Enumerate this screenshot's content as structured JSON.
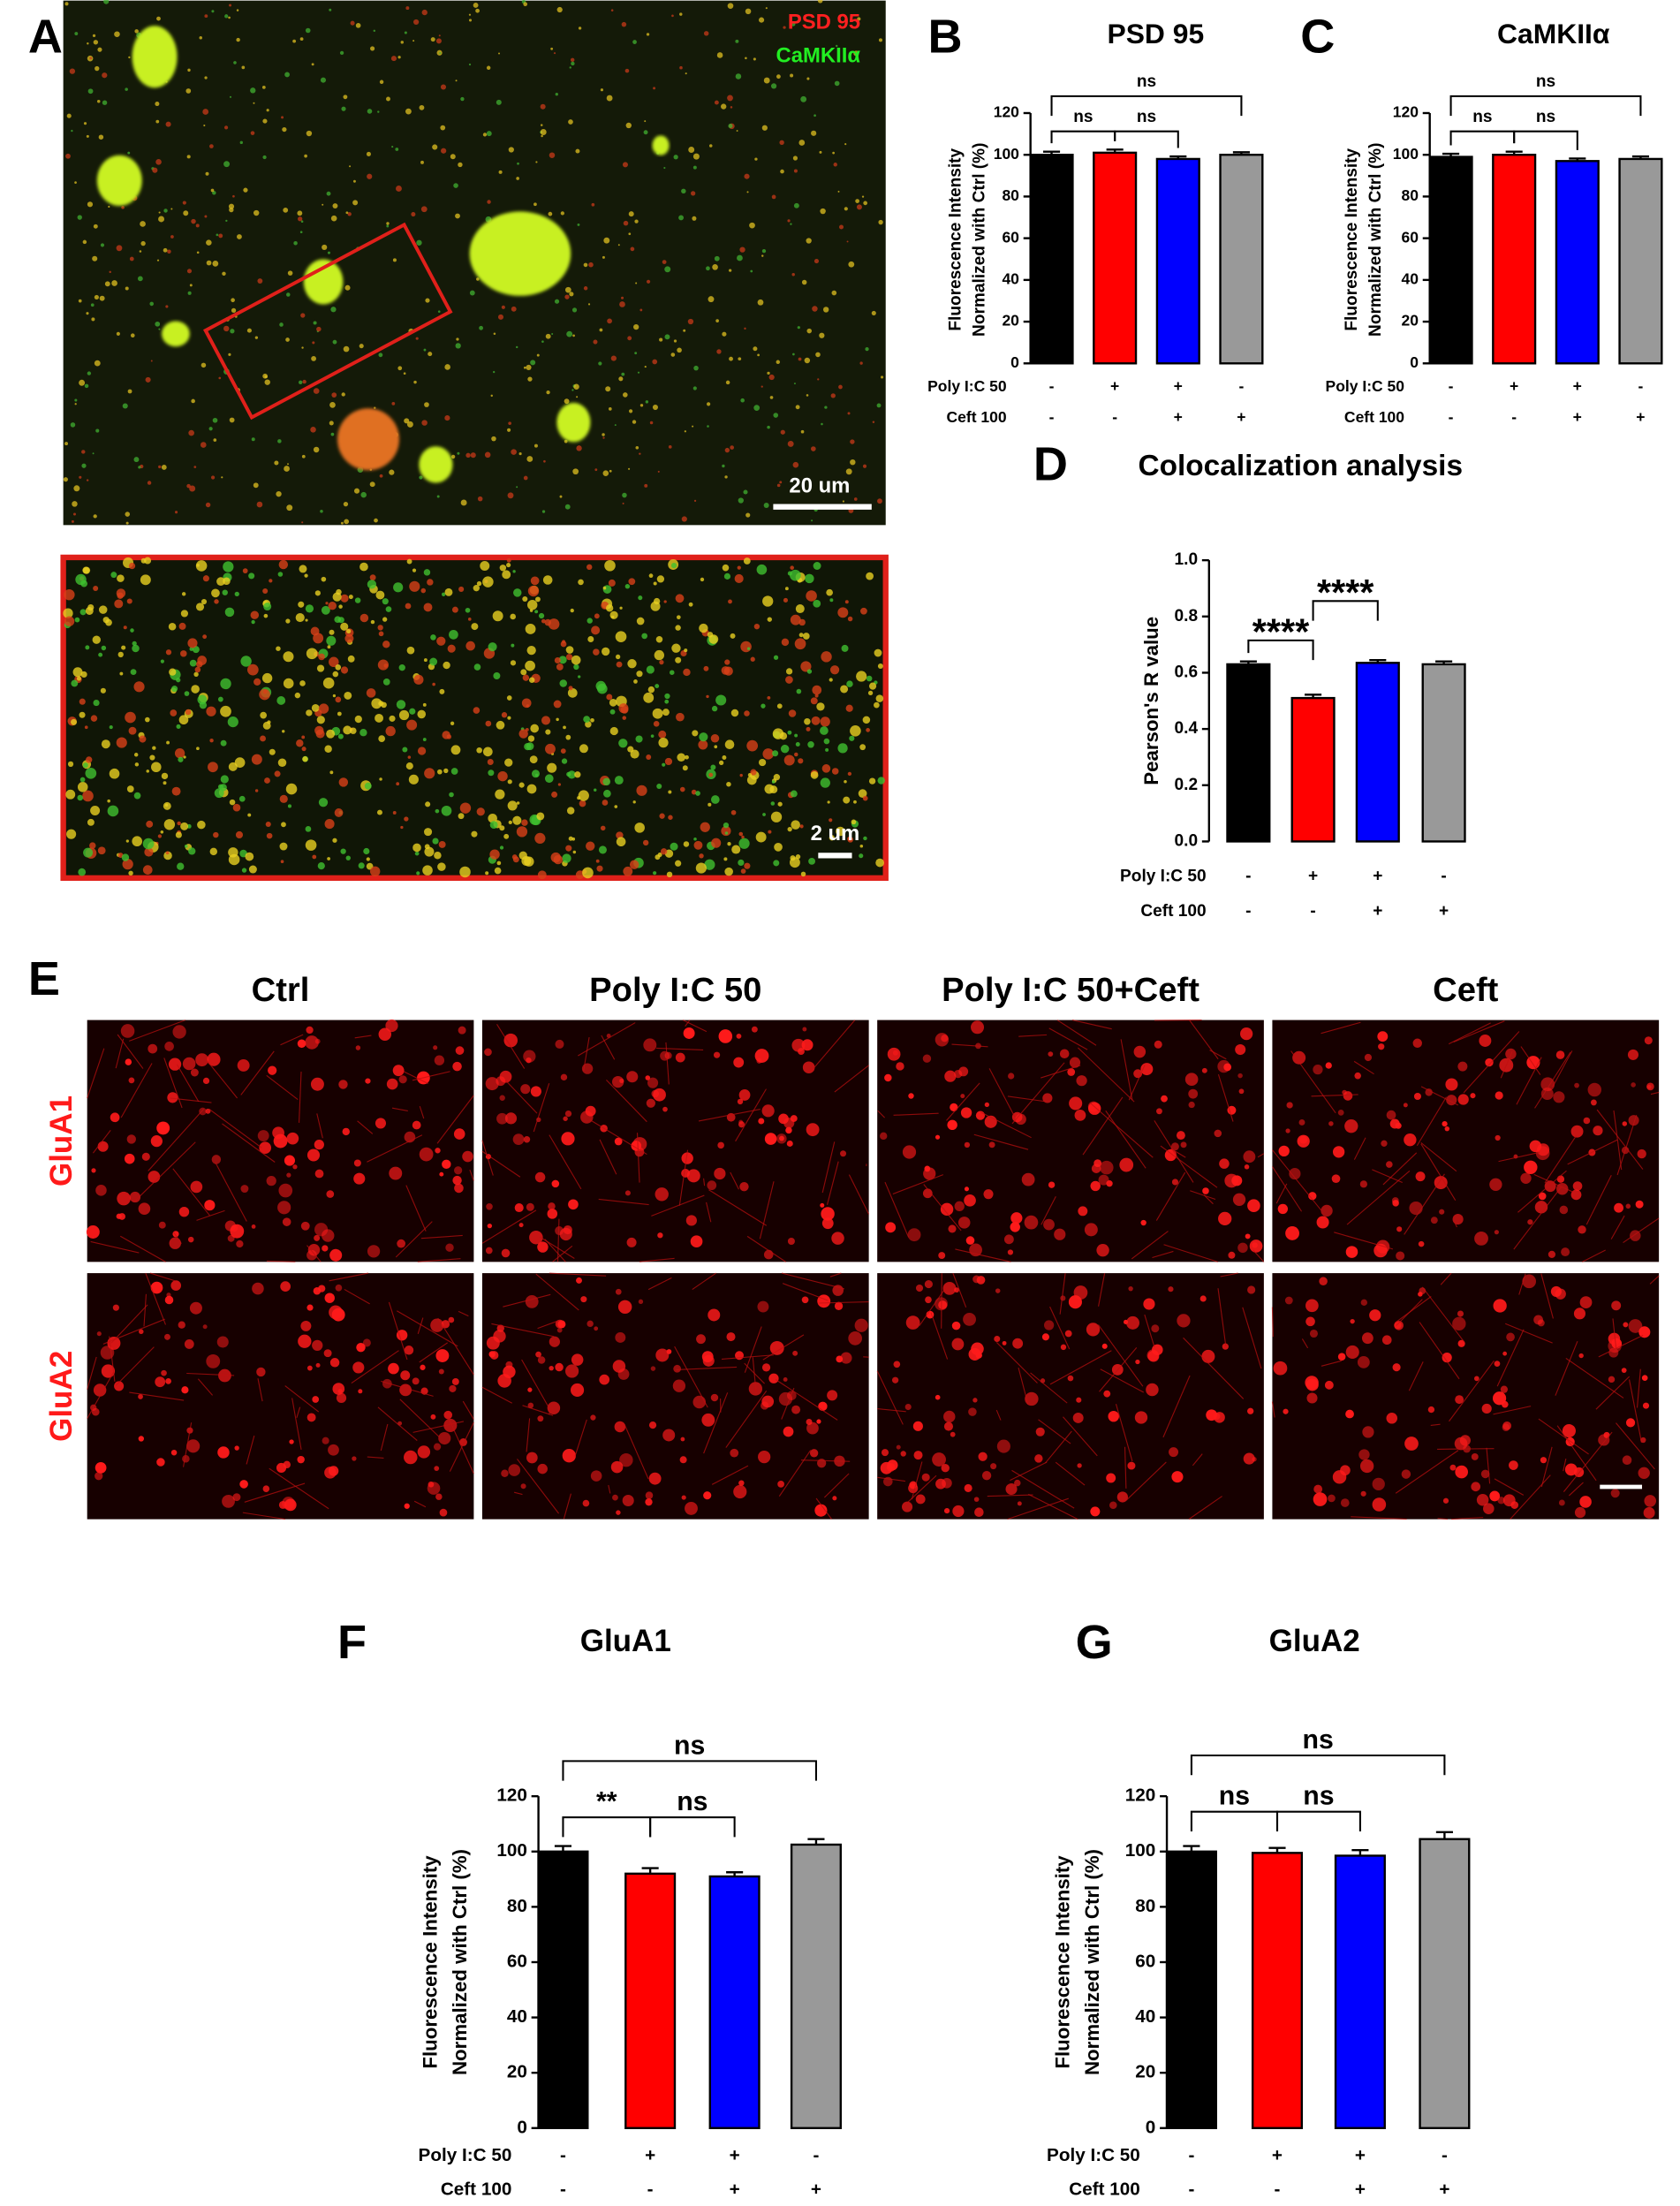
{
  "figure": {
    "panel_a": {
      "letter": "A",
      "legend": [
        "PSD 95",
        "CaMKIIα"
      ],
      "scale_bar": "20 um",
      "inset_scale_bar": "2 um"
    },
    "panel_e": {
      "letter": "E",
      "columns": [
        "Ctrl",
        "Poly I:C 50",
        "Poly I:C 50+Ceft",
        "Ceft"
      ],
      "rows": [
        "GluA1",
        "GluA2"
      ]
    }
  },
  "chart_data": [
    {
      "type": "bar",
      "panel": "B",
      "title": "PSD 95",
      "ylabel": [
        "Fluorescence Intensity",
        "Normalized with Ctrl (%)"
      ],
      "values": [
        100,
        101,
        98,
        100
      ],
      "errors": [
        1.5,
        1.5,
        1.2,
        1.2
      ],
      "colors": [
        "#000000",
        "#ff0000",
        "#0000ff",
        "#999999"
      ],
      "ylim": [
        0,
        120
      ],
      "yticks": [
        0,
        20,
        40,
        60,
        80,
        100,
        120
      ],
      "treatments": [
        {
          "name": "Poly I:C  50",
          "signs": [
            "-",
            "+",
            "+",
            "-"
          ]
        },
        {
          "name": "Ceft 100",
          "signs": [
            "-",
            "-",
            "+",
            "+"
          ]
        }
      ],
      "annotations": [
        "ns",
        "ns",
        "ns"
      ]
    },
    {
      "type": "bar",
      "panel": "C",
      "title": "CaMKIIα",
      "ylabel": [
        "Fluorescence Intensity",
        "Normalized with Ctrl (%)"
      ],
      "values": [
        99,
        100,
        97,
        98
      ],
      "errors": [
        1.5,
        1.5,
        1.2,
        1.2
      ],
      "colors": [
        "#000000",
        "#ff0000",
        "#0000ff",
        "#999999"
      ],
      "ylim": [
        0,
        120
      ],
      "yticks": [
        0,
        20,
        40,
        60,
        80,
        100,
        120
      ],
      "treatments": [
        {
          "name": "Poly I:C  50",
          "signs": [
            "-",
            "+",
            "+",
            "-"
          ]
        },
        {
          "name": "Ceft 100",
          "signs": [
            "-",
            "-",
            "+",
            "+"
          ]
        }
      ],
      "annotations": [
        "ns",
        "ns",
        "ns"
      ]
    },
    {
      "type": "bar",
      "panel": "D",
      "title": "Colocalization analysis",
      "ylabel": "Pearson's R value",
      "values": [
        0.63,
        0.51,
        0.635,
        0.63
      ],
      "errors": [
        0.01,
        0.012,
        0.01,
        0.01
      ],
      "colors": [
        "#000000",
        "#ff0000",
        "#0000ff",
        "#999999"
      ],
      "ylim": [
        0,
        1
      ],
      "yticks": [
        {
          "value": 0,
          "label": "0.0"
        },
        0.2,
        0.4,
        0.6,
        0.8,
        {
          "value": 1,
          "label": "1.0"
        }
      ],
      "treatments": [
        {
          "name": "Poly I:C  50",
          "signs": [
            "-",
            "+",
            "+",
            "-"
          ]
        },
        {
          "name": "Ceft 100",
          "signs": [
            "-",
            "-",
            "+",
            "+"
          ]
        }
      ],
      "annotations": [
        "****",
        "****"
      ]
    },
    {
      "type": "bar",
      "panel": "F",
      "title": "GluA1",
      "ylabel": [
        "Fluorescence Intensity",
        "Normalized with Ctrl (%)"
      ],
      "values": [
        100,
        92,
        91,
        102.5
      ],
      "errors": [
        2,
        2,
        1.5,
        2
      ],
      "colors": [
        "#000000",
        "#ff0000",
        "#0000ff",
        "#999999"
      ],
      "ylim": [
        0,
        120
      ],
      "yticks": [
        0,
        20,
        40,
        60,
        80,
        100,
        120
      ],
      "treatments": [
        {
          "name": "Poly I:C  50",
          "signs": [
            "-",
            "+",
            "+",
            "-"
          ]
        },
        {
          "name": "Ceft 100",
          "signs": [
            "-",
            "-",
            "+",
            "+"
          ]
        }
      ],
      "annotations": [
        "ns",
        "**",
        "ns"
      ]
    },
    {
      "type": "bar",
      "panel": "G",
      "title": "GluA2",
      "ylabel": [
        "Fluorescence Intensity",
        "Normalized with Ctrl (%)"
      ],
      "values": [
        100,
        99.5,
        98.5,
        104.5
      ],
      "errors": [
        2,
        1.8,
        2,
        2.5
      ],
      "colors": [
        "#000000",
        "#ff0000",
        "#0000ff",
        "#999999"
      ],
      "ylim": [
        0,
        120
      ],
      "yticks": [
        0,
        20,
        40,
        60,
        80,
        100,
        120
      ],
      "treatments": [
        {
          "name": "Poly I:C  50",
          "signs": [
            "-",
            "+",
            "+",
            "-"
          ]
        },
        {
          "name": "Ceft 100",
          "signs": [
            "-",
            "-",
            "+",
            "+"
          ]
        }
      ],
      "annotations": [
        "ns",
        "ns",
        "ns"
      ]
    }
  ]
}
